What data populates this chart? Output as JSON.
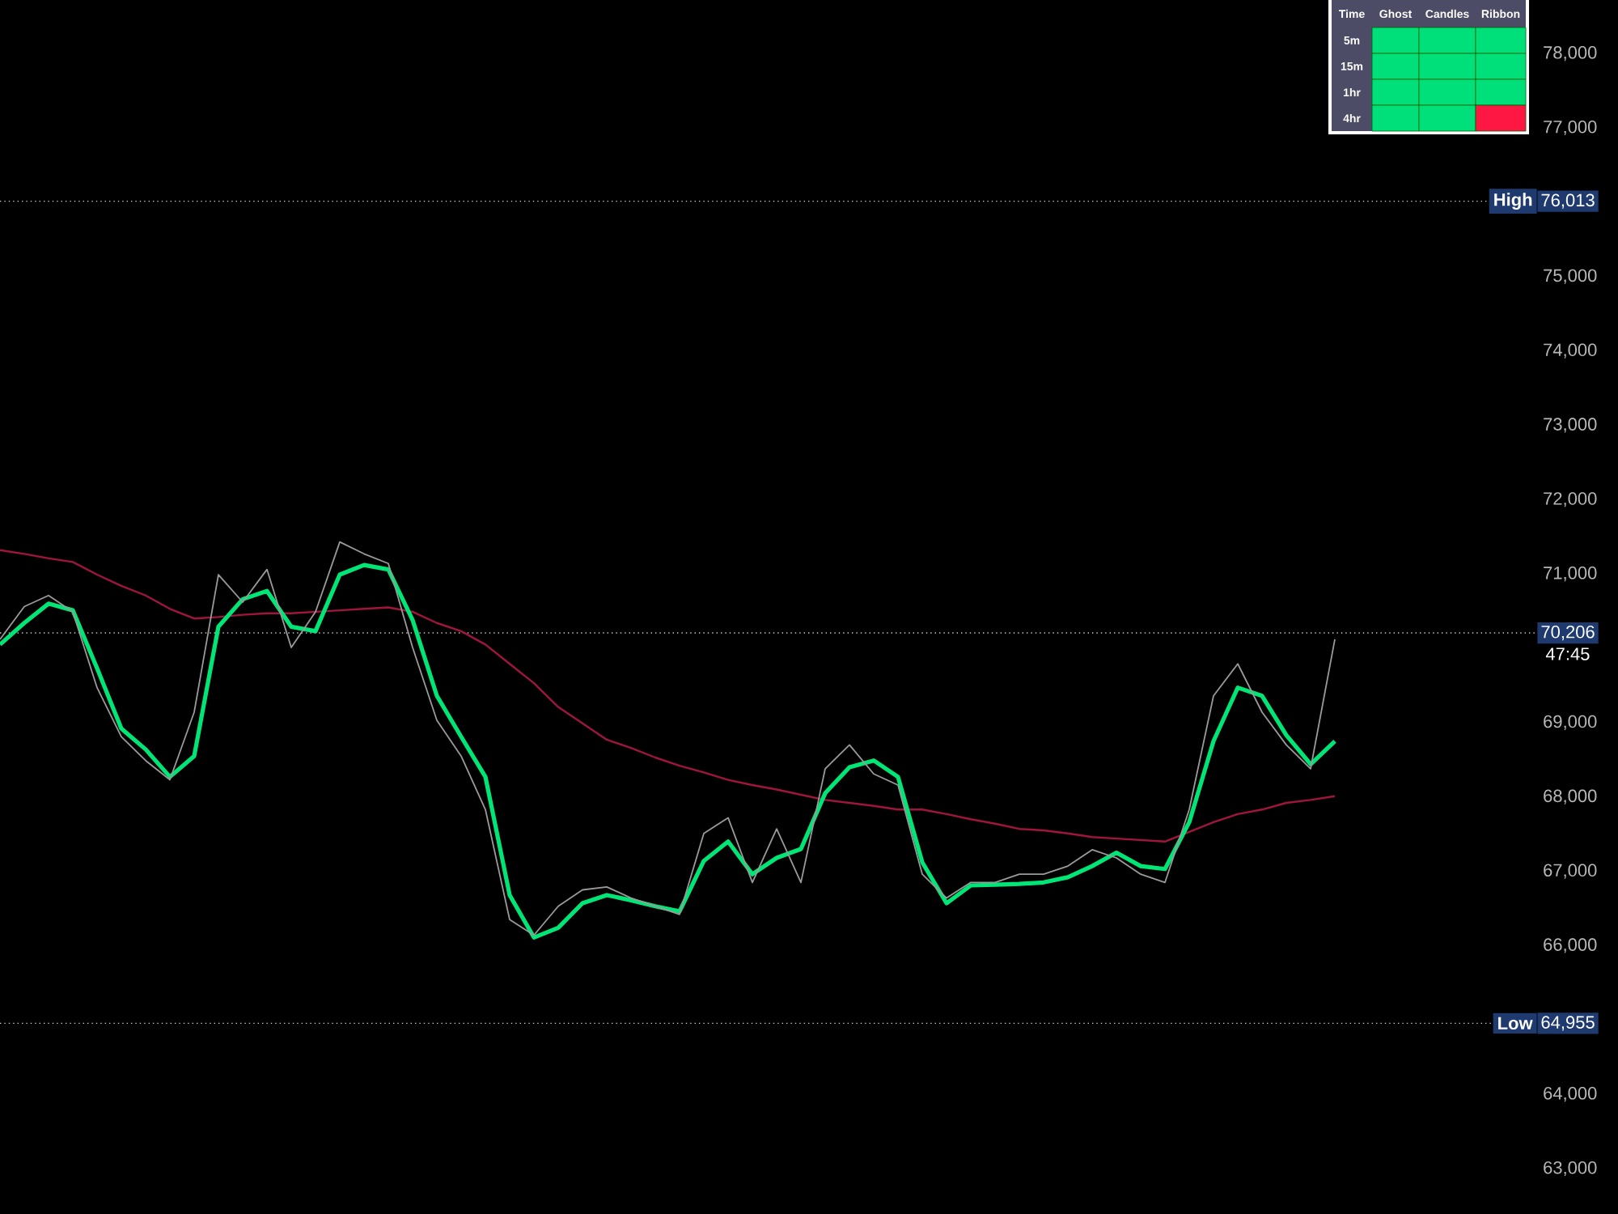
{
  "chart_data": [
    {
      "type": "line",
      "categories": [
        null,
        null,
        null,
        null,
        null,
        null,
        null,
        null,
        null,
        null,
        null,
        null,
        null,
        null,
        null,
        null,
        null,
        null,
        null,
        null,
        null,
        null,
        null,
        null,
        null,
        null,
        null,
        null,
        null,
        null,
        null,
        null,
        null,
        null,
        null,
        null,
        null,
        null,
        null,
        null,
        null,
        null,
        null,
        null,
        null,
        null,
        null,
        null,
        null,
        null,
        null,
        null,
        null,
        null,
        null,
        null
      ],
      "series": [
        {
          "color": "#a0153e",
          "values": [
            71320,
            71270,
            71210,
            71160,
            70990,
            70840,
            70710,
            70530,
            70400,
            70420,
            70450,
            70470,
            70470,
            70490,
            70510,
            70530,
            70550,
            70490,
            70340,
            70230,
            70050,
            69790,
            69530,
            69210,
            68990,
            68770,
            68660,
            68530,
            68420,
            68330,
            68230,
            68160,
            68100,
            68030,
            67960,
            67920,
            67880,
            67830,
            67830,
            67770,
            67700,
            67640,
            67570,
            67550,
            67510,
            67460,
            67440,
            67420,
            67400,
            67530,
            67660,
            67770,
            67830,
            67920,
            67960,
            68010
          ]
        },
        {
          "color": "#00e676",
          "values": [
            70050,
            70340,
            70600,
            70510,
            69730,
            68920,
            68640,
            68270,
            68550,
            70290,
            70660,
            70770,
            70290,
            70230,
            70990,
            71120,
            71060,
            70380,
            69360,
            68810,
            68270,
            66680,
            66110,
            66240,
            66570,
            66680,
            66610,
            66530,
            66460,
            67140,
            67400,
            66960,
            67180,
            67300,
            68050,
            68400,
            68490,
            68270,
            67120,
            66570,
            66810,
            66820,
            66830,
            66850,
            66920,
            67070,
            67250,
            67070,
            67030,
            67660,
            68750,
            69470,
            69360,
            68830,
            68440,
            68750
          ]
        },
        {
          "color": "#9a9a9a",
          "values": [
            70120,
            70560,
            70710,
            70490,
            69470,
            68810,
            68490,
            68230,
            69140,
            70990,
            70620,
            71060,
            70010,
            70490,
            71430,
            71270,
            71140,
            70010,
            69030,
            68550,
            67830,
            66350,
            66140,
            66530,
            66750,
            66790,
            66640,
            66530,
            66420,
            67510,
            67720,
            66850,
            67570,
            66850,
            68380,
            68700,
            68310,
            68160,
            66960,
            66640,
            66850,
            66850,
            66960,
            66960,
            67070,
            67290,
            67180,
            66960,
            66850,
            67830,
            69360,
            69790,
            69140,
            68700,
            68380,
            70120
          ]
        }
      ],
      "ylim": [
        62390,
        78720
      ],
      "yticks": [
        {
          "value": 63000,
          "label": "63,000"
        },
        {
          "value": 64000,
          "label": "64,000"
        },
        {
          "value": 64955,
          "label": "64,955"
        },
        {
          "value": 66000,
          "label": "66,000"
        },
        {
          "value": 67000,
          "label": "67,000"
        },
        {
          "value": 68000,
          "label": "68,000"
        },
        {
          "value": 69000,
          "label": "69,000"
        },
        {
          "value": 70206,
          "label": "70,206"
        },
        {
          "value": 71000,
          "label": "71,000"
        },
        {
          "value": 72000,
          "label": "72,000"
        },
        {
          "value": 73000,
          "label": "73,000"
        },
        {
          "value": 74000,
          "label": "74,000"
        },
        {
          "value": 75000,
          "label": "75,000"
        },
        {
          "value": 76013,
          "label": "76,013"
        },
        {
          "value": 77000,
          "label": "77,000"
        },
        {
          "value": 78000,
          "label": "78,000"
        }
      ],
      "ref_lines": [
        {
          "axis": "y",
          "value": 76013,
          "label": "High",
          "color": "#cccccc",
          "line_style": "dotted"
        },
        {
          "axis": "y",
          "value": 64955,
          "label": "Low",
          "color": "#cccccc",
          "line_style": "dotted"
        },
        {
          "axis": "y",
          "value": 70206,
          "color": "#cccccc",
          "line_style": "dotted"
        }
      ],
      "annotations": [
        "47:45"
      ],
      "tick_labels": "y",
      "grid": false,
      "marker": "none",
      "line_style": "solid"
    },
    {
      "type": "other",
      "title": "Time",
      "categories": [
        "Ghost",
        "Candles",
        "Ribbon"
      ],
      "y_categories": [
        "5m",
        "15m",
        "1hr",
        "4hr"
      ],
      "colors": [
        "#00e07a",
        "#00e07a",
        "#00e07a",
        "#00e07a",
        "#00e07a",
        "#00e07a",
        "#00e07a",
        "#00e07a",
        "#00e07a",
        "#00e07a",
        "#00e07a",
        "#ff1744"
      ]
    }
  ]
}
